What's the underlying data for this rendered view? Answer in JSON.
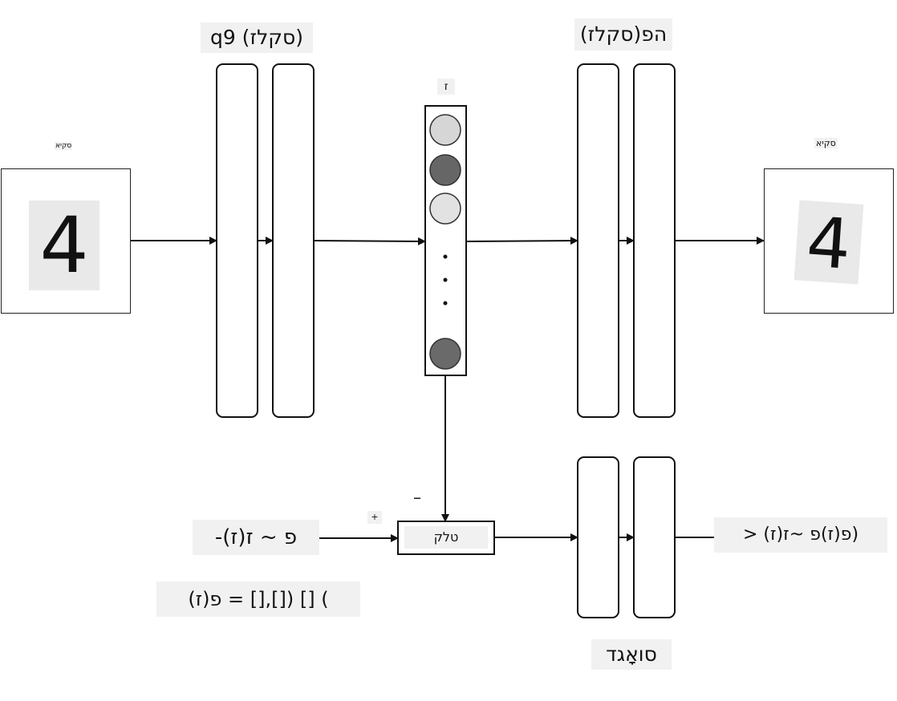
{
  "encoder": {
    "title": "q9 (סקלז)"
  },
  "decoder": {
    "title": "(סקלז)הפ"
  },
  "latent": {
    "label": "ז"
  },
  "input_image": {
    "label": "סקיא",
    "digit": "4"
  },
  "output_image": {
    "label": "סקיא",
    "digit": "4"
  },
  "prior": {
    "sample": "-(ז)פ ~ ז",
    "formula": "פ(ז) = [],[]) [] (",
    "plus": "+"
  },
  "minus_sign": "–",
  "concat": {
    "label": "טלק"
  },
  "discriminator": {
    "title": "סואָגד",
    "output": "> פ(ז)פ ~ז(ז))"
  },
  "colors": {
    "stroke": "#111111",
    "label_bg": "#f1f1f1",
    "node_light": "#d6d6d6",
    "node_dark": "#666666"
  }
}
